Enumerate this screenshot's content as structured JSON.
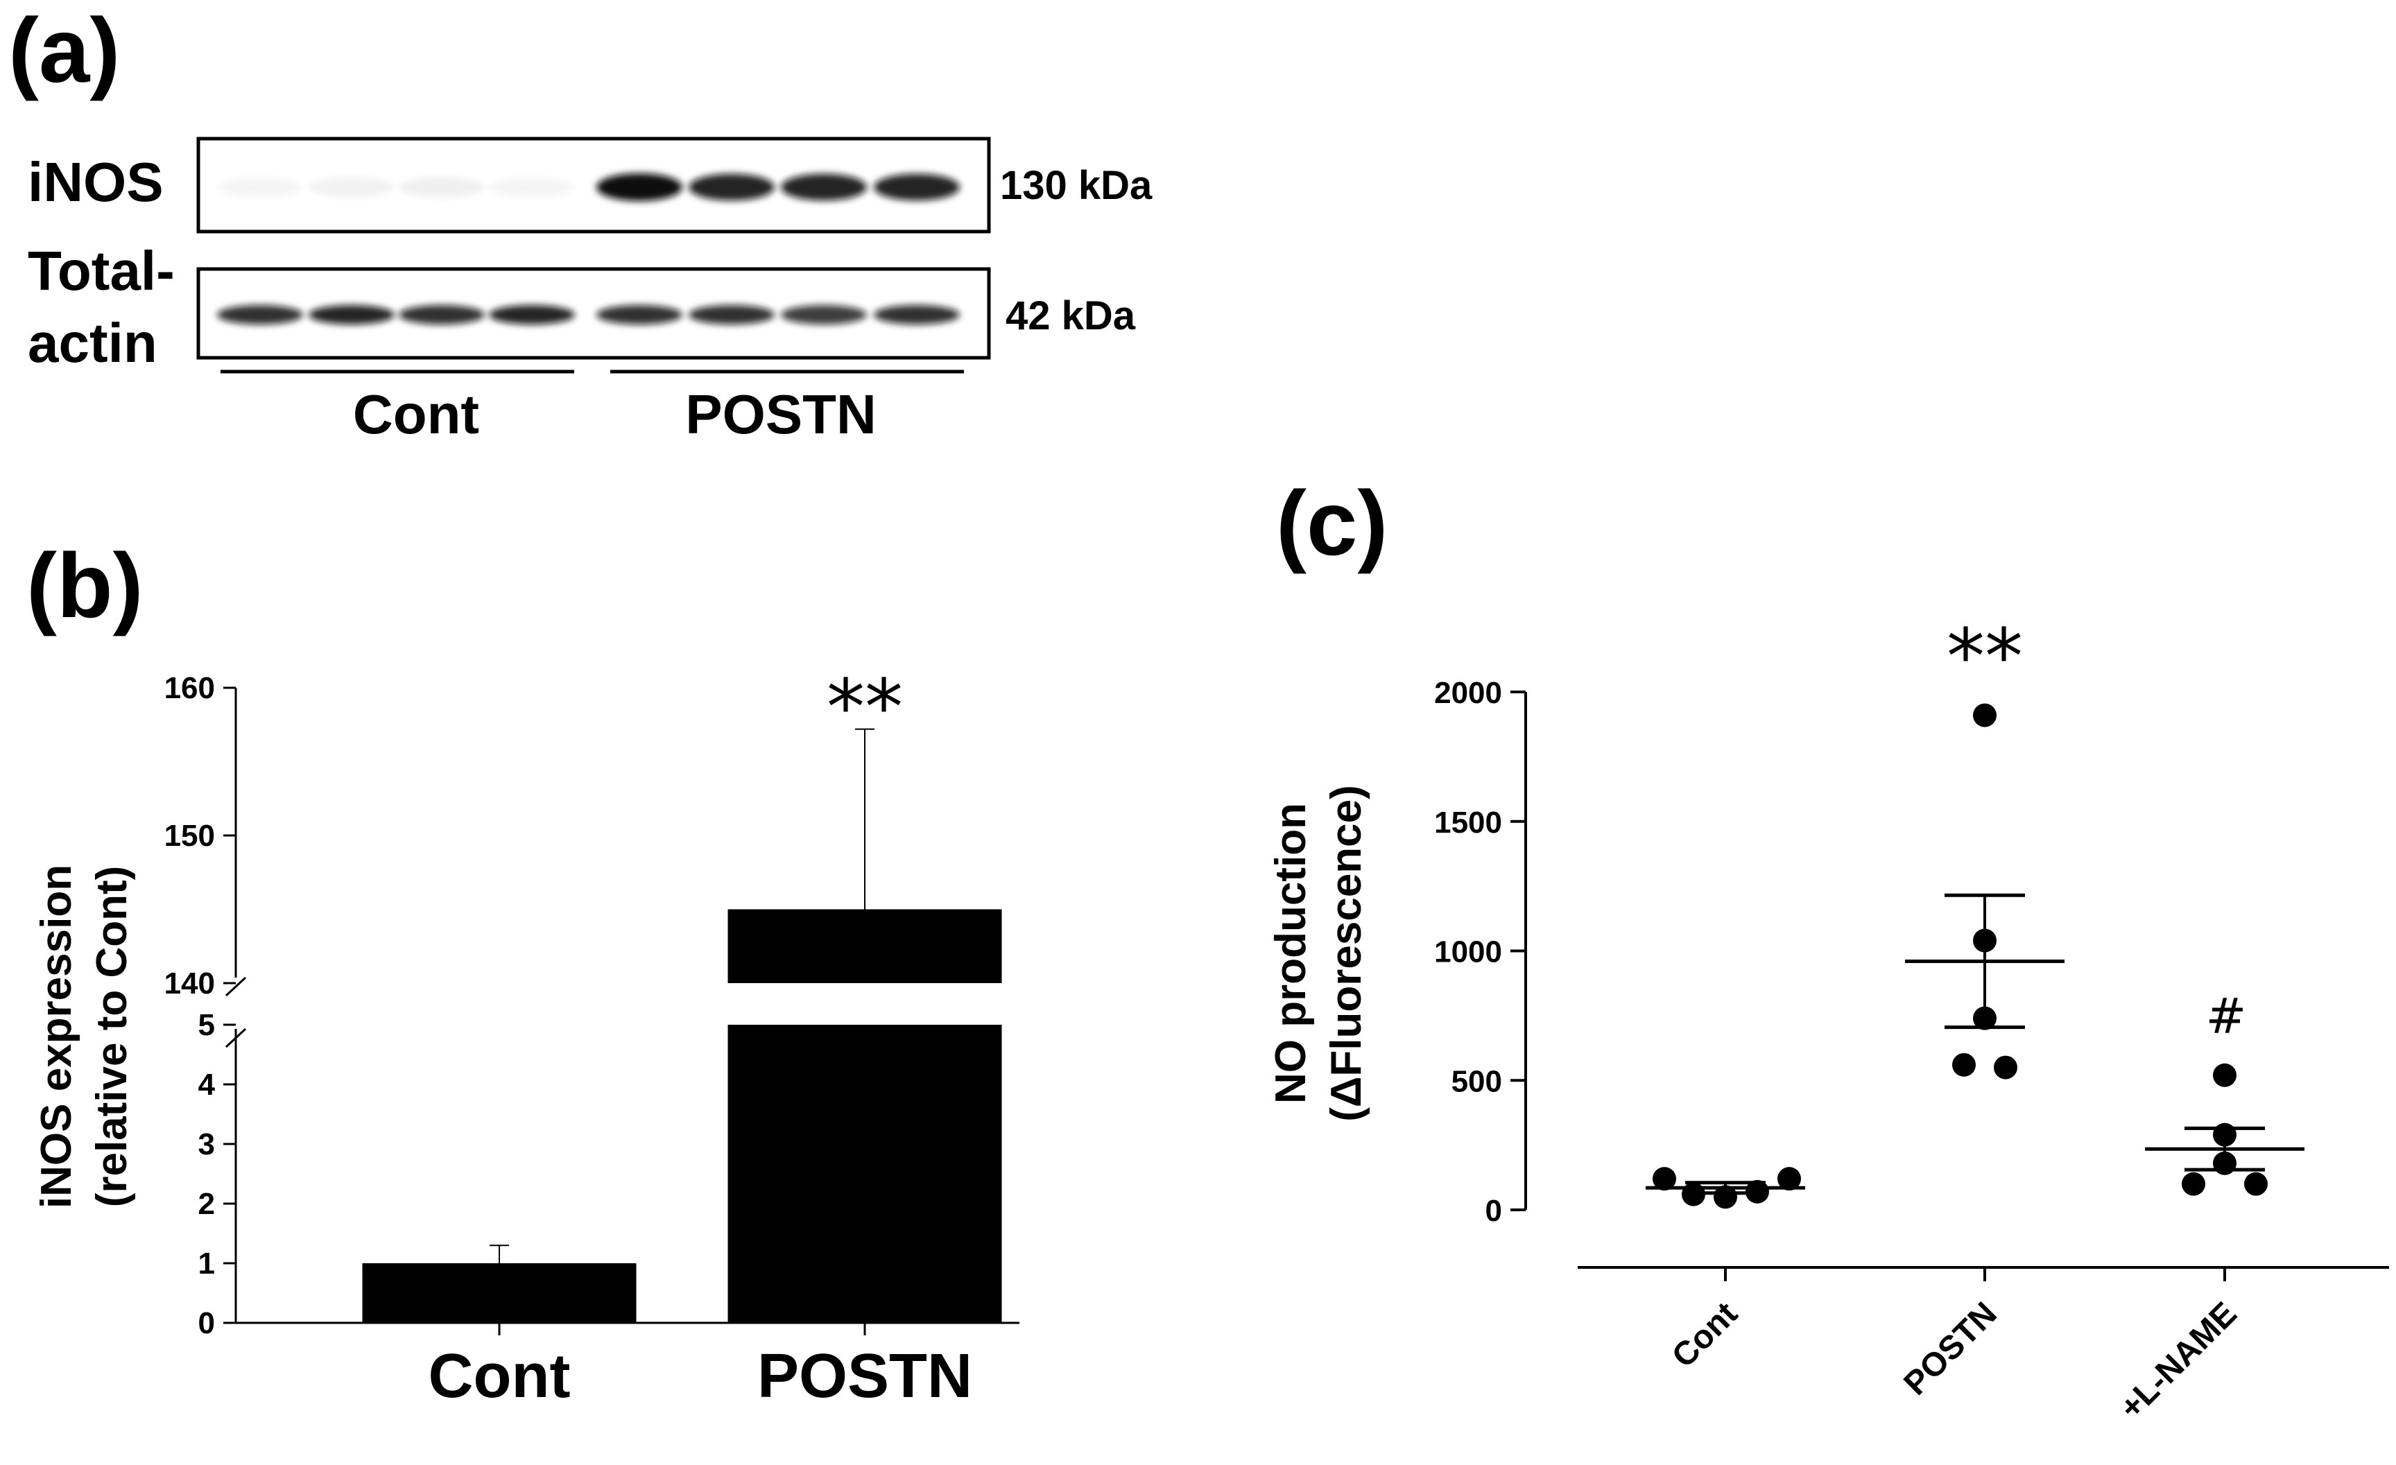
{
  "panel_a": {
    "letter": "(a)",
    "rows": [
      {
        "label_lines": [
          "iNOS"
        ],
        "kda": "130 kDa",
        "bands": [
          0.04,
          0.05,
          0.06,
          0.04,
          1.0,
          0.9,
          0.9,
          0.9
        ]
      },
      {
        "label_lines": [
          "Total-",
          "actin"
        ],
        "kda": "42 kDa",
        "bands": [
          0.85,
          0.9,
          0.85,
          0.9,
          0.85,
          0.85,
          0.8,
          0.85
        ]
      }
    ],
    "groups": [
      "Cont",
      "POSTN"
    ]
  },
  "chart_data": [
    {
      "panel": "(b)",
      "type": "bar",
      "categories": [
        "Cont",
        "POSTN"
      ],
      "values": [
        1.0,
        145.0
      ],
      "errors_upper": [
        0.3,
        12.2
      ],
      "ylabel": [
        "iNOS expression",
        "(relative to Cont)"
      ],
      "y_axis_break": {
        "lower_ylim": [
          0,
          5
        ],
        "upper_ylim": [
          140,
          160
        ]
      },
      "yticks_lower": [
        "0",
        "1",
        "2",
        "3",
        "4",
        "5"
      ],
      "yticks_upper": [
        "140",
        "150",
        "160"
      ],
      "annotations": [
        {
          "category": "POSTN",
          "text": "**"
        }
      ]
    },
    {
      "panel": "(c)",
      "type": "scatter",
      "categories": [
        "Cont",
        "POSTN",
        "+L-NAME"
      ],
      "points": [
        [
          120,
          60,
          50,
          70,
          120
        ],
        [
          1910,
          1040,
          740,
          560,
          550
        ],
        [
          520,
          290,
          180,
          100,
          100
        ]
      ],
      "mean": [
        85,
        960,
        235
      ],
      "sem": [
        20,
        255,
        80
      ],
      "ylabel": [
        "NO production",
        "(ΔFluorescence)"
      ],
      "ylim": [
        0,
        2000
      ],
      "yticks": [
        "0",
        "500",
        "1000",
        "1500",
        "2000"
      ],
      "annotations": [
        {
          "category": "POSTN",
          "text": "**"
        },
        {
          "category": "+L-NAME",
          "text": "#"
        }
      ]
    }
  ]
}
